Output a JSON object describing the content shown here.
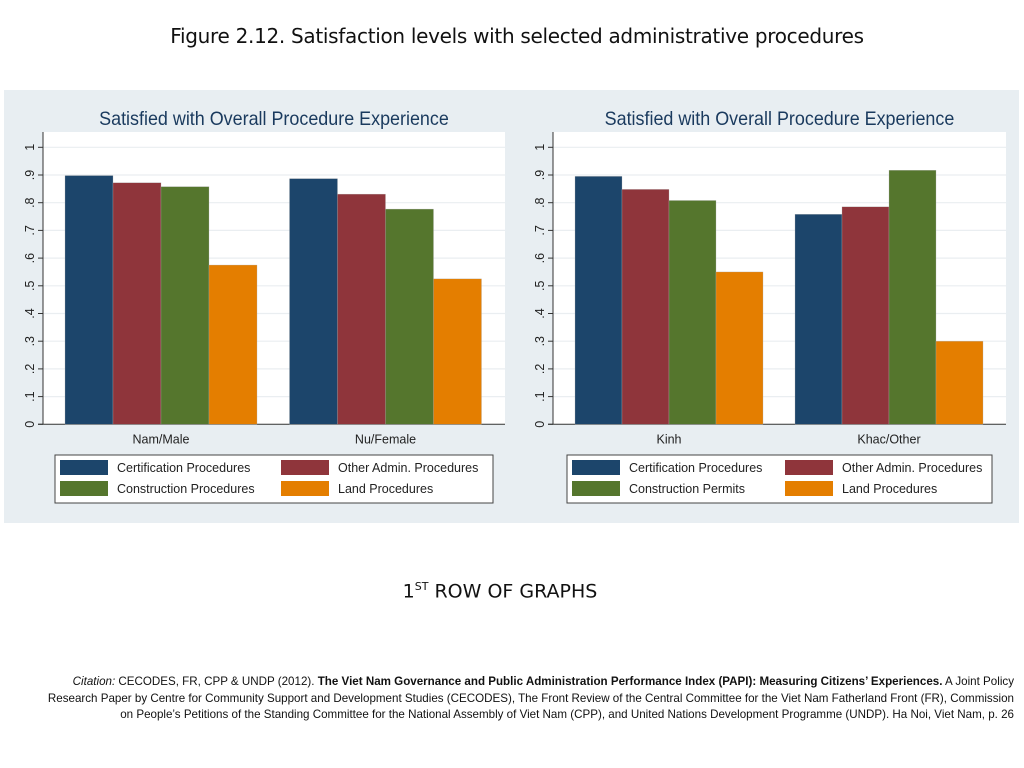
{
  "page": {
    "figure_title": "Figure 2.12. Satisfaction levels with selected administrative procedures",
    "row_caption_number": "1",
    "row_caption_suffix": "ST",
    "row_caption_text": " ROW OF GRAPHS",
    "citation": {
      "lead": "Citation:",
      "authors": " CECODES, FR, CPP & UNDP (2012). ",
      "title": "The Viet Nam Governance and Public Administration Performance Index (PAPI): Measuring Citizens’ Experiences.",
      "rest": " A Joint Policy Research Paper by Centre for Community Support and Development Studies (CECODES), The Front Review of the Central Committee for the Viet Nam Fatherland Front (FR), Commission on People’s Petitions of the Standing Committee for the National Assembly of Viet Nam (CPP), and United Nations Development Programme (UNDP). Ha Noi, Viet Nam, p. 26"
    }
  },
  "colors": {
    "panel_bg": "#e8eef2",
    "title": "#1a3a5e",
    "series": [
      "#1c456b",
      "#8f353b",
      "#55762d",
      "#e47e00"
    ]
  },
  "chart_data": [
    {
      "type": "bar",
      "title": "Satisfied with Overall Procedure Experience",
      "categories": [
        "Nam/Male",
        "Nu/Female"
      ],
      "series": [
        {
          "name": "Certification Procedures",
          "values": [
            0.898,
            0.887
          ]
        },
        {
          "name": "Other Admin. Procedures",
          "values": [
            0.872,
            0.831
          ]
        },
        {
          "name": "Construction Procedures",
          "values": [
            0.858,
            0.777
          ]
        },
        {
          "name": "Land Procedures",
          "values": [
            0.575,
            0.525
          ]
        }
      ],
      "yticks": [
        "0",
        ".1",
        ".2",
        ".3",
        ".4",
        ".5",
        ".6",
        ".7",
        ".8",
        ".9",
        "1"
      ],
      "ylim": [
        0,
        1.05
      ],
      "xlabel": "",
      "ylabel": "",
      "grid": true,
      "legend_position": "bottom"
    },
    {
      "type": "bar",
      "title": "Satisfied with Overall Procedure Experience",
      "categories": [
        "Kinh",
        "Khac/Other"
      ],
      "series": [
        {
          "name": "Certification Procedures",
          "values": [
            0.895,
            0.758
          ]
        },
        {
          "name": "Other Admin. Procedures",
          "values": [
            0.848,
            0.785
          ]
        },
        {
          "name": "Construction Permits",
          "values": [
            0.808,
            0.917
          ]
        },
        {
          "name": "Land Procedures",
          "values": [
            0.55,
            0.3
          ]
        }
      ],
      "yticks": [
        "0",
        ".1",
        ".2",
        ".3",
        ".4",
        ".5",
        ".6",
        ".7",
        ".8",
        ".9",
        "1"
      ],
      "ylim": [
        0,
        1.05
      ],
      "xlabel": "",
      "ylabel": "",
      "grid": true,
      "legend_position": "bottom"
    }
  ]
}
